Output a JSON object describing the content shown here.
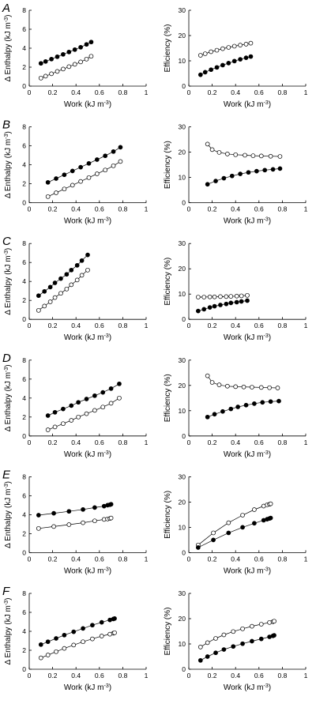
{
  "chart_data": [
    {
      "panel": "A",
      "type": "scatter",
      "xlabel": "Work",
      "xunit": "(kJ m",
      "xexp": "-3",
      "xclose": ")",
      "ylabel": "Δ Enthalpy",
      "yunit": "(kJ m",
      "yexp": "-3",
      "yclose": ")",
      "xlim": [
        0,
        1
      ],
      "ylim": [
        0,
        8
      ],
      "xticks": [
        0,
        0.2,
        0.4,
        0.6,
        0.8,
        1
      ],
      "xticklabels": [
        "0",
        "0.2",
        "0.4",
        "0.6",
        "0.8",
        "1"
      ],
      "yticks": [
        0,
        2,
        4,
        6,
        8
      ],
      "yticklabels": [
        "0",
        "2",
        "4",
        "6",
        "8"
      ],
      "series": [
        {
          "marker": "filled",
          "x": [
            0.1,
            0.14,
            0.19,
            0.24,
            0.29,
            0.34,
            0.39,
            0.44,
            0.49,
            0.53
          ],
          "y": [
            2.4,
            2.6,
            2.85,
            3.1,
            3.35,
            3.6,
            3.85,
            4.1,
            4.4,
            4.65
          ]
        },
        {
          "marker": "open",
          "x": [
            0.1,
            0.14,
            0.19,
            0.24,
            0.29,
            0.34,
            0.39,
            0.44,
            0.49,
            0.53
          ],
          "y": [
            0.85,
            1.05,
            1.3,
            1.55,
            1.8,
            2.05,
            2.3,
            2.55,
            2.85,
            3.15
          ]
        }
      ]
    },
    {
      "panel": "A",
      "type": "scatter",
      "xlabel": "Work",
      "xunit": "(kJ m",
      "xexp": "-3",
      "xclose": ")",
      "ylabel": "Efficiency (%)",
      "xlim": [
        0,
        1
      ],
      "ylim": [
        0,
        30
      ],
      "xticks": [
        0,
        0.2,
        0.4,
        0.6,
        0.8,
        1
      ],
      "xticklabels": [
        "0",
        "0.2",
        "0.4",
        "0.6",
        "0.8",
        "1"
      ],
      "yticks": [
        0,
        10,
        20,
        30
      ],
      "yticklabels": [
        "0",
        "10",
        "20",
        "30"
      ],
      "series": [
        {
          "marker": "open",
          "x": [
            0.1,
            0.14,
            0.19,
            0.24,
            0.29,
            0.34,
            0.39,
            0.44,
            0.49,
            0.53
          ],
          "y": [
            12.2,
            12.8,
            13.6,
            14.2,
            14.8,
            15.3,
            15.8,
            16.2,
            16.6,
            17.0
          ]
        },
        {
          "marker": "filled",
          "x": [
            0.1,
            0.14,
            0.19,
            0.24,
            0.29,
            0.34,
            0.39,
            0.44,
            0.49,
            0.53
          ],
          "y": [
            4.5,
            5.5,
            6.5,
            7.4,
            8.3,
            9.1,
            9.9,
            10.6,
            11.2,
            11.7
          ]
        }
      ]
    },
    {
      "panel": "B",
      "type": "scatter",
      "xlabel": "Work",
      "xunit": "(kJ m",
      "xexp": "-3",
      "xclose": ")",
      "ylabel": "Δ Enthalpy",
      "yunit": "(kJ m",
      "yexp": "-3",
      "yclose": ")",
      "xlim": [
        0,
        1
      ],
      "ylim": [
        0,
        8
      ],
      "xticks": [
        0,
        0.2,
        0.4,
        0.6,
        0.8,
        1
      ],
      "xticklabels": [
        "0",
        "0.2",
        "0.4",
        "0.6",
        "0.8",
        "1"
      ],
      "yticks": [
        0,
        2,
        4,
        6,
        8
      ],
      "yticklabels": [
        "0",
        "2",
        "4",
        "6",
        "8"
      ],
      "series": [
        {
          "marker": "filled",
          "x": [
            0.16,
            0.23,
            0.3,
            0.37,
            0.44,
            0.51,
            0.58,
            0.65,
            0.72,
            0.78
          ],
          "y": [
            2.15,
            2.55,
            2.95,
            3.35,
            3.75,
            4.15,
            4.55,
            4.95,
            5.4,
            5.85
          ]
        },
        {
          "marker": "open",
          "x": [
            0.16,
            0.23,
            0.3,
            0.37,
            0.44,
            0.51,
            0.58,
            0.65,
            0.72,
            0.78
          ],
          "y": [
            0.65,
            1.05,
            1.45,
            1.85,
            2.25,
            2.65,
            3.05,
            3.45,
            3.9,
            4.35
          ]
        }
      ]
    },
    {
      "panel": "B",
      "type": "scatter",
      "xlabel": "Work",
      "xunit": "(kJ m",
      "xexp": "-3",
      "xclose": ")",
      "ylabel": "Efficiency (%)",
      "xlim": [
        0,
        1
      ],
      "ylim": [
        0,
        30
      ],
      "xticks": [
        0,
        0.2,
        0.4,
        0.6,
        0.8,
        1
      ],
      "xticklabels": [
        "0",
        "0.2",
        "0.4",
        "0.6",
        "0.8",
        "1"
      ],
      "yticks": [
        0,
        10,
        20,
        30
      ],
      "yticklabels": [
        "0",
        "10",
        "20",
        "30"
      ],
      "series": [
        {
          "marker": "open",
          "x": [
            0.16,
            0.2,
            0.26,
            0.33,
            0.4,
            0.48,
            0.55,
            0.62,
            0.7,
            0.78
          ],
          "y": [
            23.2,
            21.0,
            19.9,
            19.3,
            19.0,
            18.8,
            18.6,
            18.5,
            18.4,
            18.3
          ]
        },
        {
          "marker": "filled",
          "x": [
            0.16,
            0.23,
            0.3,
            0.37,
            0.44,
            0.51,
            0.58,
            0.65,
            0.72,
            0.78
          ],
          "y": [
            7.3,
            8.6,
            9.7,
            10.6,
            11.4,
            12.0,
            12.5,
            12.9,
            13.2,
            13.5
          ]
        }
      ]
    },
    {
      "panel": "C",
      "type": "scatter",
      "xlabel": "Work",
      "xunit": "(kJ m",
      "xexp": "-3",
      "xclose": ")",
      "ylabel": "Δ Enthalpy",
      "yunit": "(kJ m",
      "yexp": "-3",
      "yclose": ")",
      "xlim": [
        0,
        1
      ],
      "ylim": [
        0,
        8
      ],
      "xticks": [
        0,
        0.2,
        0.4,
        0.6,
        0.8,
        1
      ],
      "xticklabels": [
        "0",
        "0.2",
        "0.4",
        "0.6",
        "0.8",
        "1"
      ],
      "yticks": [
        0,
        2,
        4,
        6,
        8
      ],
      "yticklabels": [
        "0",
        "2",
        "4",
        "6",
        "8"
      ],
      "series": [
        {
          "marker": "filled",
          "x": [
            0.08,
            0.13,
            0.18,
            0.22,
            0.27,
            0.32,
            0.36,
            0.41,
            0.45,
            0.5
          ],
          "y": [
            2.5,
            2.95,
            3.4,
            3.85,
            4.3,
            4.75,
            5.2,
            5.7,
            6.2,
            6.8
          ]
        },
        {
          "marker": "open",
          "x": [
            0.08,
            0.13,
            0.18,
            0.22,
            0.27,
            0.32,
            0.36,
            0.41,
            0.45,
            0.5
          ],
          "y": [
            0.95,
            1.4,
            1.85,
            2.3,
            2.75,
            3.2,
            3.65,
            4.15,
            4.65,
            5.2
          ]
        }
      ]
    },
    {
      "panel": "C",
      "type": "scatter",
      "xlabel": "Work",
      "xunit": "(kJ m",
      "xexp": "-3",
      "xclose": ")",
      "ylabel": "Efficiency (%)",
      "xlim": [
        0,
        1
      ],
      "ylim": [
        0,
        30
      ],
      "xticks": [
        0,
        0.2,
        0.4,
        0.6,
        0.8,
        1
      ],
      "xticklabels": [
        "0",
        "0.2",
        "0.4",
        "0.6",
        "0.8",
        "1"
      ],
      "yticks": [
        0,
        10,
        20,
        30
      ],
      "yticklabels": [
        "0",
        "10",
        "20",
        "30"
      ],
      "series": [
        {
          "marker": "open",
          "x": [
            0.08,
            0.13,
            0.18,
            0.22,
            0.27,
            0.32,
            0.36,
            0.41,
            0.45,
            0.5
          ],
          "y": [
            8.8,
            8.8,
            8.9,
            8.9,
            9.0,
            9.0,
            9.1,
            9.2,
            9.3,
            9.5
          ]
        },
        {
          "marker": "filled",
          "x": [
            0.08,
            0.13,
            0.18,
            0.22,
            0.27,
            0.32,
            0.36,
            0.41,
            0.45,
            0.5
          ],
          "y": [
            3.3,
            4.0,
            4.7,
            5.2,
            5.7,
            6.1,
            6.5,
            6.8,
            7.1,
            7.4
          ]
        }
      ]
    },
    {
      "panel": "D",
      "type": "scatter",
      "xlabel": "Work",
      "xunit": "(kJ m",
      "xexp": "-3",
      "xclose": ")",
      "ylabel": "Δ Enthalpy",
      "yunit": "(kJ m",
      "yexp": "-3",
      "yclose": ")",
      "xlim": [
        0,
        1
      ],
      "ylim": [
        0,
        8
      ],
      "xticks": [
        0,
        0.2,
        0.4,
        0.6,
        0.8,
        1
      ],
      "xticklabels": [
        "0",
        "0.2",
        "0.4",
        "0.6",
        "0.8",
        "1"
      ],
      "yticks": [
        0,
        2,
        4,
        6,
        8
      ],
      "yticklabels": [
        "0",
        "2",
        "4",
        "6",
        "8"
      ],
      "series": [
        {
          "marker": "filled",
          "x": [
            0.16,
            0.22,
            0.29,
            0.36,
            0.42,
            0.49,
            0.56,
            0.63,
            0.7,
            0.77
          ],
          "y": [
            2.15,
            2.5,
            2.85,
            3.2,
            3.55,
            3.9,
            4.25,
            4.6,
            5.0,
            5.5
          ]
        },
        {
          "marker": "open",
          "x": [
            0.16,
            0.22,
            0.29,
            0.36,
            0.42,
            0.49,
            0.56,
            0.63,
            0.7,
            0.77
          ],
          "y": [
            0.65,
            0.95,
            1.3,
            1.65,
            2.0,
            2.35,
            2.7,
            3.05,
            3.45,
            4.0
          ]
        }
      ]
    },
    {
      "panel": "D",
      "type": "scatter",
      "xlabel": "Work",
      "xunit": "(kJ m",
      "xexp": "-3",
      "xclose": ")",
      "ylabel": "Efficiency (%)",
      "xlim": [
        0,
        1
      ],
      "ylim": [
        0,
        30
      ],
      "xticks": [
        0,
        0.2,
        0.4,
        0.6,
        0.8,
        1
      ],
      "xticklabels": [
        "0",
        "0.2",
        "0.4",
        "0.6",
        "0.8",
        "1"
      ],
      "yticks": [
        0,
        10,
        20,
        30
      ],
      "yticklabels": [
        "0",
        "10",
        "20",
        "30"
      ],
      "series": [
        {
          "marker": "open",
          "x": [
            0.16,
            0.2,
            0.26,
            0.33,
            0.4,
            0.47,
            0.54,
            0.62,
            0.69,
            0.76
          ],
          "y": [
            23.8,
            21.2,
            20.2,
            19.7,
            19.5,
            19.4,
            19.3,
            19.2,
            19.1,
            19.0
          ]
        },
        {
          "marker": "filled",
          "x": [
            0.16,
            0.22,
            0.29,
            0.36,
            0.42,
            0.49,
            0.56,
            0.63,
            0.7,
            0.77
          ],
          "y": [
            7.5,
            8.6,
            9.7,
            10.7,
            11.5,
            12.2,
            12.8,
            13.3,
            13.6,
            13.8
          ]
        }
      ]
    },
    {
      "panel": "E",
      "type": "scatter",
      "xlabel": "Work",
      "xunit": "(kJ m",
      "xexp": "-3",
      "xclose": ")",
      "ylabel": "Δ Enthalpy",
      "yunit": "(kJ m",
      "yexp": "-3",
      "yclose": ")",
      "xlim": [
        0,
        1
      ],
      "ylim": [
        0,
        8
      ],
      "xticks": [
        0,
        0.2,
        0.4,
        0.6,
        0.8,
        1
      ],
      "xticklabels": [
        "0",
        "0.2",
        "0.4",
        "0.6",
        "0.8",
        "1"
      ],
      "yticks": [
        0,
        2,
        4,
        6,
        8
      ],
      "yticklabels": [
        "0",
        "2",
        "4",
        "6",
        "8"
      ],
      "series": [
        {
          "marker": "filled",
          "x": [
            0.08,
            0.21,
            0.34,
            0.46,
            0.56,
            0.64,
            0.67,
            0.69,
            0.7
          ],
          "y": [
            3.95,
            4.15,
            4.35,
            4.55,
            4.75,
            4.9,
            5.0,
            5.05,
            5.1
          ]
        },
        {
          "marker": "open",
          "x": [
            0.08,
            0.21,
            0.34,
            0.46,
            0.56,
            0.64,
            0.67,
            0.69,
            0.7
          ],
          "y": [
            2.55,
            2.75,
            2.95,
            3.15,
            3.35,
            3.5,
            3.55,
            3.6,
            3.65
          ]
        }
      ]
    },
    {
      "panel": "E",
      "type": "scatter",
      "xlabel": "Work",
      "xunit": "(kJ m",
      "xexp": "-3",
      "xclose": ")",
      "ylabel": "Efficiency (%)",
      "xlim": [
        0,
        1
      ],
      "ylim": [
        0,
        30
      ],
      "xticks": [
        0,
        0.2,
        0.4,
        0.6,
        0.8,
        1
      ],
      "xticklabels": [
        "0",
        "0.2",
        "0.4",
        "0.6",
        "0.8",
        "1"
      ],
      "yticks": [
        0,
        10,
        20,
        30
      ],
      "yticklabels": [
        "0",
        "10",
        "20",
        "30"
      ],
      "series": [
        {
          "marker": "open",
          "x": [
            0.08,
            0.21,
            0.34,
            0.46,
            0.56,
            0.64,
            0.67,
            0.69,
            0.7
          ],
          "y": [
            3.0,
            7.8,
            11.8,
            14.8,
            17.0,
            18.4,
            18.9,
            19.1,
            19.3
          ]
        },
        {
          "marker": "filled",
          "x": [
            0.08,
            0.21,
            0.34,
            0.46,
            0.56,
            0.64,
            0.67,
            0.69,
            0.7
          ],
          "y": [
            2.0,
            5.0,
            7.8,
            10.0,
            11.6,
            12.8,
            13.2,
            13.5,
            13.7
          ]
        }
      ]
    },
    {
      "panel": "F",
      "type": "scatter",
      "xlabel": "Work",
      "xunit": "(kJ m",
      "xexp": "-3",
      "xclose": ")",
      "ylabel": "Δ Enthalpy",
      "yunit": "(kJ m",
      "yexp": "-3",
      "yclose": ")",
      "xlim": [
        0,
        1
      ],
      "ylim": [
        0,
        8
      ],
      "xticks": [
        0,
        0.2,
        0.4,
        0.6,
        0.8,
        1
      ],
      "xticklabels": [
        "0",
        "0.2",
        "0.4",
        "0.6",
        "0.8",
        "1"
      ],
      "yticks": [
        0,
        2,
        4,
        6,
        8
      ],
      "yticklabels": [
        "0",
        "2",
        "4",
        "6",
        "8"
      ],
      "series": [
        {
          "marker": "filled",
          "x": [
            0.1,
            0.16,
            0.23,
            0.3,
            0.38,
            0.46,
            0.54,
            0.62,
            0.69,
            0.72,
            0.73
          ],
          "y": [
            2.6,
            2.9,
            3.25,
            3.6,
            3.95,
            4.3,
            4.65,
            4.95,
            5.2,
            5.3,
            5.35
          ]
        },
        {
          "marker": "open",
          "x": [
            0.1,
            0.16,
            0.23,
            0.3,
            0.38,
            0.46,
            0.54,
            0.62,
            0.69,
            0.72,
            0.73
          ],
          "y": [
            1.2,
            1.5,
            1.85,
            2.2,
            2.55,
            2.9,
            3.2,
            3.5,
            3.7,
            3.8,
            3.85
          ]
        }
      ]
    },
    {
      "panel": "F",
      "type": "scatter",
      "xlabel": "Work",
      "xunit": "(kJ m",
      "xexp": "-3",
      "xclose": ")",
      "ylabel": "Efficiency (%)",
      "xlim": [
        0,
        1
      ],
      "ylim": [
        0,
        30
      ],
      "xticks": [
        0,
        0.2,
        0.4,
        0.6,
        0.8,
        1
      ],
      "xticklabels": [
        "0",
        "0.2",
        "0.4",
        "0.6",
        "0.8",
        "1"
      ],
      "yticks": [
        0,
        10,
        20,
        30
      ],
      "yticklabels": [
        "0",
        "10",
        "20",
        "30"
      ],
      "series": [
        {
          "marker": "open",
          "x": [
            0.1,
            0.16,
            0.23,
            0.3,
            0.38,
            0.46,
            0.54,
            0.62,
            0.69,
            0.72,
            0.73
          ],
          "y": [
            8.8,
            10.5,
            12.2,
            13.6,
            14.9,
            16.0,
            17.0,
            17.8,
            18.5,
            18.8,
            19.0
          ]
        },
        {
          "marker": "filled",
          "x": [
            0.1,
            0.16,
            0.23,
            0.3,
            0.38,
            0.46,
            0.54,
            0.62,
            0.69,
            0.72,
            0.73
          ],
          "y": [
            3.5,
            5.0,
            6.5,
            7.8,
            9.0,
            10.1,
            11.1,
            12.0,
            12.8,
            13.2,
            13.4
          ]
        }
      ]
    }
  ],
  "colors": {
    "axis": "#000000",
    "marker_stroke": "#000000",
    "filled_marker": "#000000",
    "open_marker": "#ffffff",
    "connect_line": "#000000"
  }
}
